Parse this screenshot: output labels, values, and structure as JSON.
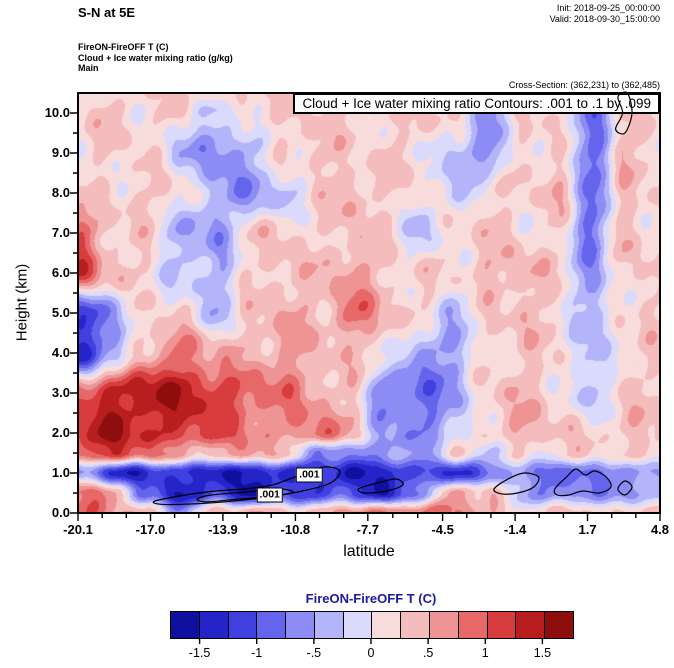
{
  "header": {
    "title": "S-N at 5E",
    "init_label": "Init: 2018-09-25_00:00:00",
    "valid_label": "Valid: 2018-09-30_15:00:00",
    "product_lines": {
      "field": "FireON-FireOFF T  (C)",
      "contour": "Cloud + Ice water mixing ratio  (g/kg)",
      "domain": "Main"
    },
    "cross_section_label": "Cross-Section: (362,231) to (362,485)"
  },
  "plot": {
    "inner_title": "Cloud + Ice water mixing ratio Contours: .001 to .1 by .099",
    "xlabel": "latitude",
    "ylabel": "Height (km)"
  },
  "chart_data": {
    "type": "heatmap",
    "title": "FireON-FireOFF T (C) cross-section S-N at 5E",
    "xlabel": "latitude",
    "ylabel": "Height (km)",
    "xlim": [
      -20.1,
      4.8
    ],
    "ylim": [
      0,
      10.5
    ],
    "x_ticks": [
      -20.1,
      -17.0,
      -13.9,
      -10.8,
      -7.7,
      -4.5,
      -1.4,
      1.7,
      4.8
    ],
    "x_tick_labels": [
      "-20.1",
      "-17.0",
      "-13.9",
      "-10.8",
      "-7.7",
      "-4.5",
      "-1.4",
      "1.7",
      "4.8"
    ],
    "y_ticks": [
      0,
      1,
      2,
      3,
      4,
      5,
      6,
      7,
      8,
      9,
      10
    ],
    "y_tick_labels": [
      "0.0",
      "1.0",
      "2.0",
      "3.0",
      "4.0",
      "5.0",
      "6.0",
      "7.0",
      "8.0",
      "9.0",
      "10.0"
    ],
    "field_name": "FireON-FireOFF T (C)",
    "grid": {
      "lats": [
        -20.1,
        -18.6,
        -17.2,
        -15.7,
        -14.2,
        -12.8,
        -11.3,
        -9.8,
        -8.4,
        -6.9,
        -5.4,
        -4.0,
        -2.5,
        -1.0,
        0.4,
        1.9,
        3.3,
        4.8
      ],
      "heights": [
        0,
        0.5,
        1,
        1.5,
        2,
        3,
        4,
        5,
        6,
        7,
        8,
        9,
        10,
        10.5
      ],
      "values": [
        [
          1.0,
          0.6,
          0.3,
          -0.4,
          0.3,
          0.4,
          0.5,
          0.3,
          0.6,
          0.8,
          0.9,
          0.7,
          0.4,
          0.2,
          0.3,
          0.2,
          0.3,
          0.5
        ],
        [
          0.8,
          0.5,
          -0.8,
          -1.5,
          -1.2,
          -1.5,
          -1.0,
          -1.3,
          -0.9,
          -1.5,
          -0.6,
          0.4,
          0.6,
          -0.5,
          -0.8,
          -0.5,
          -0.7,
          -0.3
        ],
        [
          -0.5,
          -1.2,
          -1.4,
          -1.2,
          -1.5,
          -1.3,
          -1.5,
          -1.2,
          -1.4,
          -1.5,
          -1.0,
          -1.3,
          -0.8,
          -0.6,
          -0.9,
          -0.7,
          -0.8,
          -0.4
        ],
        [
          1.0,
          1.2,
          0.8,
          0.6,
          0.4,
          0.6,
          0.3,
          -0.5,
          -0.8,
          -0.6,
          -0.4,
          0.2,
          -0.3,
          0.2,
          0.2,
          0.2,
          0.2,
          0.4
        ],
        [
          1.2,
          1.5,
          1.3,
          1.2,
          1.0,
          0.8,
          0.6,
          0.9,
          0.4,
          -0.5,
          -0.7,
          -0.3,
          0.3,
          0.5,
          0.3,
          0.2,
          0.4,
          0.3
        ],
        [
          1.0,
          1.3,
          1.5,
          1.4,
          1.2,
          0.9,
          0.8,
          0.5,
          0.3,
          -0.8,
          -0.9,
          -0.5,
          0.3,
          0.4,
          0.2,
          -0.4,
          0.3,
          0.2
        ],
        [
          -1.4,
          -0.6,
          0.5,
          0.8,
          0.5,
          0.4,
          0.6,
          0.4,
          0.3,
          0.2,
          -0.6,
          -0.5,
          0.2,
          0.3,
          0.2,
          -0.4,
          0.2,
          0.2
        ],
        [
          -1.2,
          -0.5,
          0.2,
          0.2,
          -0.3,
          0.2,
          0.5,
          0.3,
          0.9,
          0.4,
          0.2,
          -0.3,
          0.2,
          0.4,
          0.2,
          -0.5,
          0.2,
          0.3
        ],
        [
          1.1,
          0.4,
          0.2,
          -0.3,
          -0.4,
          0.2,
          0.4,
          0.3,
          0.6,
          0.3,
          0.2,
          0.2,
          0.4,
          0.5,
          0.2,
          -0.6,
          0.3,
          0.2
        ],
        [
          0.9,
          0.3,
          0.2,
          -0.4,
          -0.6,
          0.2,
          0.3,
          0.2,
          0.4,
          0.2,
          -0.3,
          0.2,
          0.3,
          0.2,
          0.2,
          -0.8,
          0.4,
          0.2
        ],
        [
          0.2,
          0.2,
          0.3,
          0.2,
          -0.5,
          -0.6,
          -0.3,
          0.2,
          0.5,
          0.2,
          0.2,
          -0.3,
          0.2,
          0.2,
          0.4,
          -0.7,
          0.3,
          0.2
        ],
        [
          0.2,
          0.2,
          0.2,
          -0.3,
          -0.7,
          -0.4,
          0.2,
          0.4,
          0.2,
          0.2,
          0.2,
          -0.4,
          -0.6,
          0.2,
          0.3,
          -0.9,
          0.4,
          0.2
        ],
        [
          0.2,
          0.3,
          0.2,
          0.2,
          -0.4,
          0.3,
          0.2,
          0.3,
          0.2,
          0.2,
          0.3,
          0.2,
          -0.5,
          0.2,
          0.2,
          -0.8,
          0.3,
          0.2
        ],
        [
          0.2,
          0.2,
          0.2,
          0.2,
          0.3,
          0.2,
          0.2,
          0.2,
          0.2,
          0.2,
          0.2,
          0.2,
          0.2,
          0.2,
          0.2,
          -0.5,
          0.2,
          0.2
        ]
      ]
    },
    "colorbar": {
      "title": "FireON-FireOFF T  (C)",
      "title_color": "#1c1c9e",
      "min": -1.75,
      "max": 1.75,
      "step": 0.25,
      "colors": [
        "#10109e",
        "#2424c8",
        "#4040e0",
        "#6464ec",
        "#8c8cf4",
        "#b4b4fa",
        "#dadafc",
        "#f8dcdc",
        "#f4bcbc",
        "#ee9494",
        "#e66868",
        "#d83c3c",
        "#b81e1e",
        "#8e0e0e"
      ],
      "tick_values": [
        -1.5,
        -1,
        -0.5,
        0,
        0.5,
        1,
        1.5
      ],
      "tick_labels": [
        "-1.5",
        "-1",
        "-.5",
        "0",
        ".5",
        "1",
        "1.5"
      ]
    },
    "cloud_contours": {
      "levels_text": ".001 to .1 by .099",
      "loops": [
        [
          [
            -16.8,
            0.3
          ],
          [
            -15.5,
            0.45
          ],
          [
            -14.2,
            0.55
          ],
          [
            -13.0,
            0.6
          ],
          [
            -11.8,
            0.7
          ],
          [
            -10.6,
            0.95
          ],
          [
            -9.6,
            1.15
          ],
          [
            -8.9,
            1.05
          ],
          [
            -9.3,
            0.75
          ],
          [
            -10.5,
            0.55
          ],
          [
            -12.0,
            0.4
          ],
          [
            -13.8,
            0.28
          ],
          [
            -15.5,
            0.22
          ],
          [
            -16.6,
            0.22
          ]
        ],
        [
          [
            -14.6,
            0.28
          ],
          [
            -13.2,
            0.35
          ],
          [
            -11.8,
            0.42
          ],
          [
            -10.9,
            0.52
          ],
          [
            -11.5,
            0.6
          ],
          [
            -13.0,
            0.52
          ],
          [
            -14.4,
            0.45
          ],
          [
            -15.0,
            0.35
          ]
        ],
        [
          [
            -8.1,
            0.6
          ],
          [
            -7.3,
            0.75
          ],
          [
            -6.5,
            0.85
          ],
          [
            -6.2,
            0.7
          ],
          [
            -6.9,
            0.55
          ],
          [
            -7.8,
            0.5
          ]
        ],
        [
          [
            -2.3,
            0.6
          ],
          [
            -1.7,
            0.85
          ],
          [
            -1.0,
            1.0
          ],
          [
            -0.4,
            0.9
          ],
          [
            -0.6,
            0.65
          ],
          [
            -1.3,
            0.5
          ],
          [
            -2.0,
            0.48
          ]
        ],
        [
          [
            0.3,
            0.6
          ],
          [
            0.8,
            0.9
          ],
          [
            1.2,
            1.1
          ],
          [
            1.6,
            0.95
          ],
          [
            2.0,
            1.05
          ],
          [
            2.5,
            0.9
          ],
          [
            2.7,
            0.65
          ],
          [
            2.2,
            0.5
          ],
          [
            1.5,
            0.55
          ],
          [
            0.9,
            0.45
          ],
          [
            0.4,
            0.45
          ]
        ],
        [
          [
            3.0,
            0.6
          ],
          [
            3.3,
            0.8
          ],
          [
            3.6,
            0.65
          ],
          [
            3.3,
            0.45
          ]
        ],
        [
          [
            2.9,
            9.6
          ],
          [
            3.2,
            10.0
          ],
          [
            3.0,
            10.4
          ],
          [
            3.4,
            10.5
          ],
          [
            3.6,
            10.0
          ],
          [
            3.3,
            9.5
          ]
        ]
      ],
      "labels": [
        {
          "text": ".001",
          "lat": -10.2,
          "height": 0.95
        },
        {
          "text": ".001",
          "lat": -11.9,
          "height": 0.45
        }
      ]
    }
  }
}
